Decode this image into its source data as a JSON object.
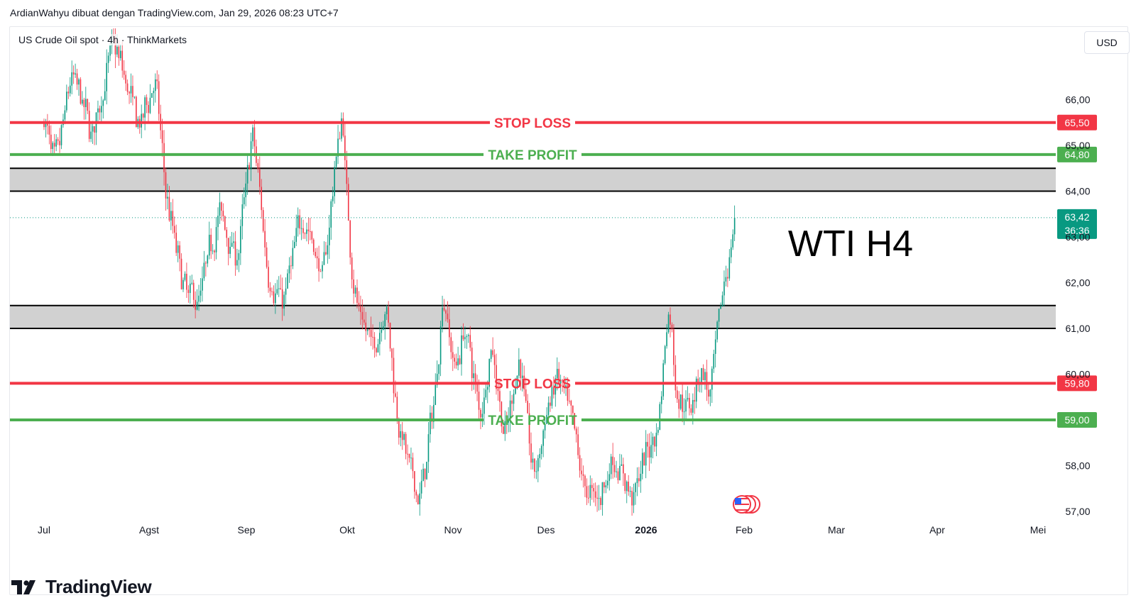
{
  "header": {
    "caption": "ArdianWahyu dibuat dengan TradingView.com, Jan 29, 2026 08:23 UTC+7"
  },
  "legend": {
    "symbol": "US Crude Oil spot · 4h · ThinkMarkets"
  },
  "currency_button": {
    "label": "USD"
  },
  "footer": {
    "brand": "TradingView"
  },
  "chart_data": {
    "type": "candlestick",
    "annotation_text": "WTI H4",
    "y_ticks": [
      "66,00",
      "65,00",
      "64,00",
      "63,00",
      "62,00",
      "61,00",
      "60,00",
      "58,00",
      "57,00"
    ],
    "ylim": [
      57,
      67
    ],
    "x_ticks": [
      {
        "label": "Jul",
        "bold": false
      },
      {
        "label": "Agst",
        "bold": false
      },
      {
        "label": "Sep",
        "bold": false
      },
      {
        "label": "Okt",
        "bold": false
      },
      {
        "label": "Nov",
        "bold": false
      },
      {
        "label": "Des",
        "bold": false
      },
      {
        "label": "2026",
        "bold": true
      },
      {
        "label": "Feb",
        "bold": false
      },
      {
        "label": "Mar",
        "bold": false
      },
      {
        "label": "Apr",
        "bold": false
      },
      {
        "label": "Mei",
        "bold": false
      }
    ],
    "levels": [
      {
        "label": "STOP LOSS",
        "price": 65.5,
        "price_label": "65,50",
        "color": "#f23645"
      },
      {
        "label": "TAKE PROFIT",
        "price": 64.8,
        "price_label": "64,80",
        "color": "#4caf50"
      },
      {
        "label": "STOP LOSS",
        "price": 59.8,
        "price_label": "59,80",
        "color": "#f23645"
      },
      {
        "label": "TAKE PROFIT",
        "price": 59.0,
        "price_label": "59,00",
        "color": "#4caf50"
      }
    ],
    "zones": [
      {
        "from": 64.0,
        "to": 64.5
      },
      {
        "from": 61.0,
        "to": 61.5
      }
    ],
    "last_price": {
      "price": 63.42,
      "label": "63,42",
      "countdown": "36:36",
      "color": "#089981"
    },
    "colors": {
      "up": "#089981",
      "down": "#f23645",
      "zone": "#d1d1d1",
      "grid_text": "#131722"
    },
    "anchors": [
      {
        "month": 0.0,
        "price": 65.5
      },
      {
        "month": 0.1,
        "price": 64.4
      },
      {
        "month": 0.25,
        "price": 66.6
      },
      {
        "month": 0.45,
        "price": 65.2
      },
      {
        "month": 0.65,
        "price": 67.3
      },
      {
        "month": 0.9,
        "price": 65.3
      },
      {
        "month": 1.05,
        "price": 66.6
      },
      {
        "month": 1.15,
        "price": 64.0
      },
      {
        "month": 1.35,
        "price": 61.8
      },
      {
        "month": 1.5,
        "price": 61.6
      },
      {
        "month": 1.7,
        "price": 63.6
      },
      {
        "month": 1.9,
        "price": 62.5
      },
      {
        "month": 2.05,
        "price": 65.4
      },
      {
        "month": 2.2,
        "price": 62.2
      },
      {
        "month": 2.35,
        "price": 61.5
      },
      {
        "month": 2.55,
        "price": 63.6
      },
      {
        "month": 2.75,
        "price": 62.0
      },
      {
        "month": 2.88,
        "price": 64.9
      },
      {
        "month": 2.95,
        "price": 65.8
      },
      {
        "month": 3.0,
        "price": 63.0
      },
      {
        "month": 3.1,
        "price": 61.2
      },
      {
        "month": 3.25,
        "price": 60.5
      },
      {
        "month": 3.35,
        "price": 61.8
      },
      {
        "month": 3.45,
        "price": 59.3
      },
      {
        "month": 3.58,
        "price": 57.8
      },
      {
        "month": 3.68,
        "price": 57.2
      },
      {
        "month": 3.82,
        "price": 59.6
      },
      {
        "month": 3.9,
        "price": 62.0
      },
      {
        "month": 4.0,
        "price": 60.0
      },
      {
        "month": 4.12,
        "price": 61.1
      },
      {
        "month": 4.28,
        "price": 59.0
      },
      {
        "month": 4.4,
        "price": 60.8
      },
      {
        "month": 4.55,
        "price": 58.4
      },
      {
        "month": 4.7,
        "price": 60.6
      },
      {
        "month": 4.85,
        "price": 57.6
      },
      {
        "month": 5.0,
        "price": 59.2
      },
      {
        "month": 5.1,
        "price": 60.0
      },
      {
        "month": 5.25,
        "price": 58.8
      },
      {
        "month": 5.38,
        "price": 57.4
      },
      {
        "month": 5.52,
        "price": 57.3
      },
      {
        "month": 5.65,
        "price": 58.2
      },
      {
        "month": 5.85,
        "price": 57.3
      },
      {
        "month": 6.0,
        "price": 58.3
      },
      {
        "month": 6.12,
        "price": 59.0
      },
      {
        "month": 6.22,
        "price": 61.8
      },
      {
        "month": 6.3,
        "price": 59.5
      },
      {
        "month": 6.42,
        "price": 59.2
      },
      {
        "month": 6.55,
        "price": 60.3
      },
      {
        "month": 6.65,
        "price": 59.3
      },
      {
        "month": 6.72,
        "price": 61.0
      },
      {
        "month": 6.82,
        "price": 62.5
      },
      {
        "month": 6.92,
        "price": 63.4
      }
    ]
  }
}
